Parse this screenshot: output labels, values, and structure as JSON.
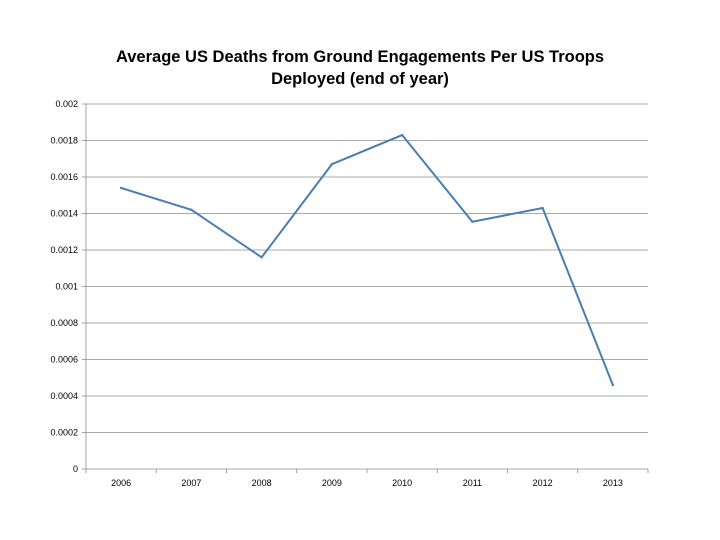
{
  "chart_data": {
    "type": "line",
    "title_line1": "Average US Deaths from Ground Engagements Per US Troops",
    "title_line2": "Deployed (end of year)",
    "categories": [
      "2006",
      "2007",
      "2008",
      "2009",
      "2010",
      "2011",
      "2012",
      "2013"
    ],
    "series": [
      {
        "name": "Average US Deaths from Ground Engagements Per US Troops Deployed",
        "values": [
          0.00154,
          0.00142,
          0.00116,
          0.00167,
          0.00183,
          0.001355,
          0.00143,
          0.00046
        ],
        "color": "#4a7eb0"
      }
    ],
    "ylim": [
      0,
      0.002
    ],
    "yticks": [
      "0",
      "0.0002",
      "0.0004",
      "0.0006",
      "0.0008",
      "0.001",
      "0.0012",
      "0.0014",
      "0.0016",
      "0.0018",
      "0.002"
    ],
    "grid": true,
    "legend": "none",
    "xlabel": "",
    "ylabel": ""
  }
}
